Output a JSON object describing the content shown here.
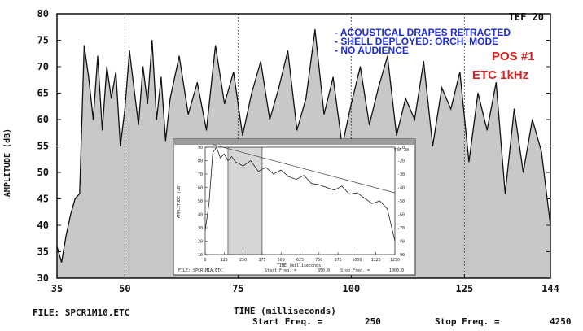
{
  "chart_data": [
    {
      "type": "line",
      "title": "",
      "xlabel": "TIME (milliseconds)",
      "ylabel": "AMPLITUDE (dB)",
      "xlim": [
        35,
        144
      ],
      "ylim": [
        30,
        80
      ],
      "x_ticks": [
        35,
        50,
        75,
        100,
        125,
        144
      ],
      "y_ticks": [
        30,
        35,
        40,
        45,
        50,
        55,
        60,
        65,
        70,
        75,
        80
      ],
      "grid": "dotted vertical lines at x ticks",
      "fill": "grey area under the curve",
      "brand": "TEF 20",
      "annotations": [
        "- ACOUSTICAL DRAPES RETRACTED",
        "- SHELL DEPLOYED: ORCH. MODE",
        "- NO AUDIENCE"
      ],
      "position_label": "POS #1",
      "measure_label": "ETC  1kHz",
      "series": [
        {
          "x": [
            35,
            36,
            37,
            38,
            39,
            40,
            41,
            42,
            43,
            44,
            45,
            46,
            47,
            48,
            49,
            50,
            51,
            52,
            53,
            54,
            55,
            56,
            57,
            58,
            59,
            60,
            62,
            64,
            66,
            68,
            70,
            72,
            74,
            76,
            78,
            80,
            82,
            84,
            86,
            88,
            90,
            92,
            94,
            96,
            98,
            100,
            102,
            104,
            106,
            108,
            110,
            112,
            114,
            116,
            118,
            120,
            122,
            124,
            126,
            128,
            130,
            132,
            134,
            136,
            138,
            140,
            142,
            144
          ],
          "values": [
            36,
            33,
            38,
            42,
            45,
            46,
            74,
            68,
            60,
            72,
            58,
            70,
            64,
            69,
            55,
            62,
            73,
            66,
            59,
            70,
            63,
            75,
            60,
            68,
            56,
            64,
            72,
            61,
            67,
            58,
            74,
            63,
            69,
            57,
            65,
            71,
            60,
            66,
            73,
            58,
            64,
            77,
            61,
            68,
            55,
            63,
            70,
            59,
            66,
            72,
            57,
            64,
            60,
            71,
            55,
            66,
            62,
            69,
            52,
            65,
            58,
            67,
            46,
            62,
            50,
            60,
            54,
            40
          ]
        }
      ]
    },
    {
      "type": "line",
      "title": "",
      "xlabel": "TIME (milliseconds)",
      "ylabel": "AMPLITUDE (dB)",
      "brand": "TEF 20",
      "x_ticks": [
        0,
        125,
        250,
        375,
        500,
        625,
        750,
        875,
        1000,
        1125,
        1250
      ],
      "y_ticks": [
        10,
        20,
        30,
        40,
        50,
        60,
        70,
        80,
        90
      ],
      "y2_ticks": [
        -10,
        -20,
        -30,
        -40,
        -50,
        -60,
        -70,
        -80,
        -90
      ],
      "xlim": [
        0,
        1250
      ],
      "ylim": [
        10,
        90
      ],
      "series": [
        {
          "x": [
            0,
            25,
            50,
            75,
            100,
            125,
            150,
            175,
            200,
            250,
            300,
            350,
            400,
            450,
            500,
            550,
            600,
            650,
            700,
            750,
            800,
            850,
            900,
            950,
            1000,
            1050,
            1100,
            1150,
            1200,
            1250
          ],
          "values": [
            28,
            48,
            86,
            90,
            82,
            85,
            80,
            83,
            79,
            76,
            80,
            72,
            75,
            70,
            73,
            68,
            66,
            69,
            63,
            62,
            60,
            58,
            61,
            55,
            56,
            52,
            48,
            50,
            44,
            20
          ]
        },
        {
          "x": [
            50,
            1250
          ],
          "values": [
            92,
            56
          ]
        }
      ],
      "footer": {
        "file": "FILE: SPCR1M1A.ETC",
        "start_freq_label": "Start Freq. =",
        "start_freq_value": "850.0",
        "stop_freq_label": "Stop Freq. =",
        "stop_freq_value": "1000.0"
      }
    }
  ],
  "footer": {
    "file": "FILE: SPCR1M10.ETC",
    "start_freq_label": "Start Freq. =",
    "start_freq_value": "250",
    "stop_freq_label": "Stop Freq. =",
    "stop_freq_value": "4250"
  }
}
